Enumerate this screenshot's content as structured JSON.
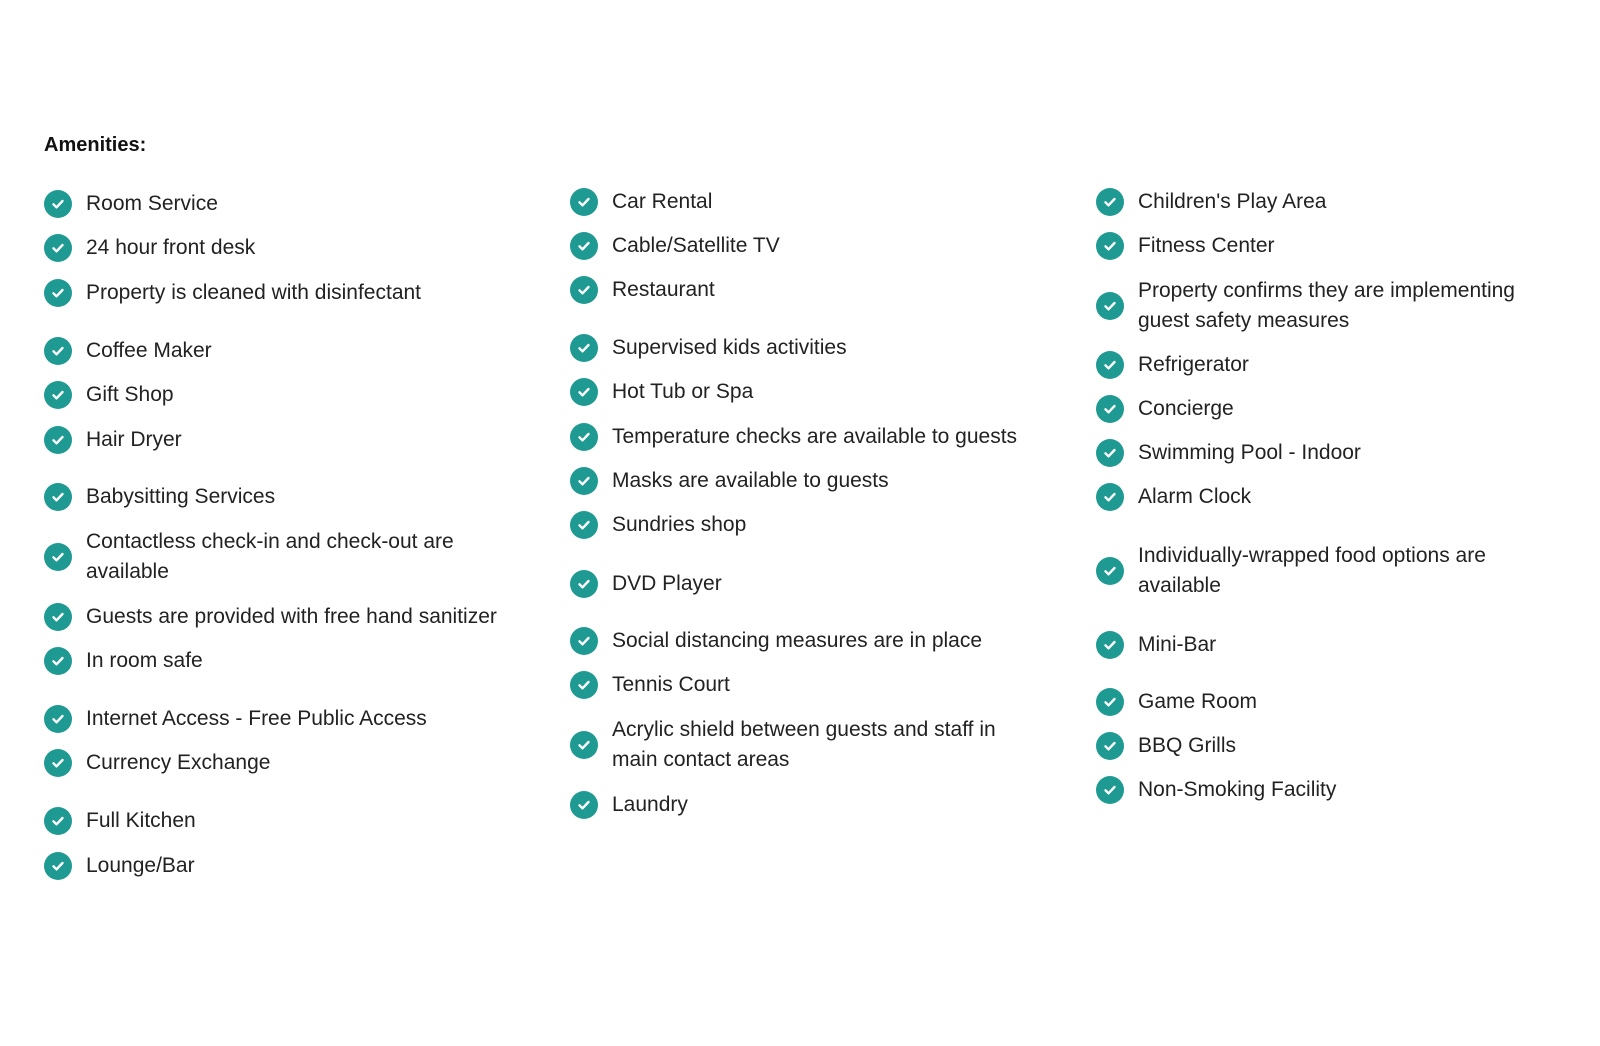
{
  "title": "Amenities:",
  "accent_color": "#1f9a93",
  "icon": "check-circle-icon",
  "columns": [
    [
      "Room Service",
      "24 hour front desk",
      "Property is cleaned with disinfectant",
      "Coffee Maker",
      "Gift Shop",
      "Hair Dryer",
      "Babysitting Services",
      "Contactless check-in and check-out are available",
      "Guests are provided with free hand sanitizer",
      "In room safe",
      "Internet Access - Free Public Access",
      "Currency Exchange",
      "Full Kitchen",
      "Lounge/Bar"
    ],
    [
      "Car Rental",
      "Cable/Satellite TV",
      "Restaurant",
      "Supervised kids activities",
      "Hot Tub or Spa",
      "Temperature checks are available to guests",
      "Masks are available to guests",
      "Sundries shop",
      "DVD Player",
      "Social distancing measures are in place",
      "Tennis Court",
      "Acrylic shield between guests and staff in main contact areas",
      "Laundry"
    ],
    [
      "Children's Play Area",
      "Fitness Center",
      "Property confirms they are implementing guest safety measures",
      "Refrigerator",
      "Concierge",
      "Swimming Pool - Indoor",
      "Alarm Clock",
      "Individually-wrapped food options are available",
      "Mini-Bar",
      "Game Room",
      "BBQ Grills",
      "Non-Smoking Facility"
    ]
  ]
}
